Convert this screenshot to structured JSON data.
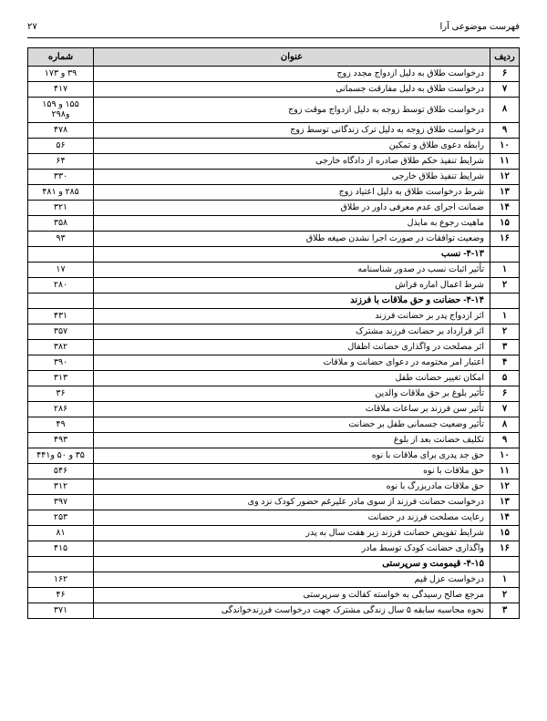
{
  "header": {
    "title": "فهرست موضوعی آرا",
    "page_no": "۲۷"
  },
  "table": {
    "columns": {
      "radif": "ردیف",
      "title": "عنوان",
      "page": "شماره"
    },
    "rows": [
      {
        "n": "۶",
        "t": "درخواست طلاق به دلیل ازدواج مجدد زوج",
        "p": "۳۹ و ۱۷۳"
      },
      {
        "n": "۷",
        "t": "درخواست طلاق به دلیل مفارقت جسمانی",
        "p": "۴۱۷"
      },
      {
        "n": "۸",
        "t": "درخواست طلاق توسط زوجه به دلیل ازدواج موقت زوج",
        "p": "۱۵۵ و ۱۵۹ و۲۹۸"
      },
      {
        "n": "۹",
        "t": "درخواست طلاق زوجه به دلیل ترک زندگانی توسط زوج",
        "p": "۴۷۸"
      },
      {
        "n": "۱۰",
        "t": "رابطه دعوی طلاق و تمکین",
        "p": "۵۶"
      },
      {
        "n": "۱۱",
        "t": "شرایط تنفیذ حکم طلاق صادره از دادگاه خارجی",
        "p": "۶۴"
      },
      {
        "n": "۱۲",
        "t": "شرایط تنفیذ طلاق خارجی",
        "p": "۳۳۰"
      },
      {
        "n": "۱۳",
        "t": "شرط درخواست طلاق به دلیل اعتیاد زوج",
        "p": "۲۸۵ و ۴۸۱"
      },
      {
        "n": "۱۴",
        "t": "ضمانت اجرای عدم معرفی داور در طلاق",
        "p": "۳۲۱"
      },
      {
        "n": "۱۵",
        "t": "ماهیت رجوع به مابذل",
        "p": "۳۵۸"
      },
      {
        "n": "۱۶",
        "t": "وضعیت توافقات در صورت اجرا نشدن صیغه طلاق",
        "p": "۹۳"
      },
      {
        "section": true,
        "t": "۴-۱۳- نسب"
      },
      {
        "n": "۱",
        "t": "تأثیر اثبات نسب در صدور شناسنامه",
        "p": "۱۷"
      },
      {
        "n": "۲",
        "t": "شرط اعمال اماره فراش",
        "p": "۲۸۰"
      },
      {
        "section": true,
        "t": "۴-۱۴- حضانت و حق ملاقات با فرزند"
      },
      {
        "n": "۱",
        "t": "اثر ازدواج پدر بر حضانت فرزند",
        "p": "۴۳۱"
      },
      {
        "n": "۲",
        "t": "اثر قرارداد بر حضانت فرزند مشترک",
        "p": "۳۵۷"
      },
      {
        "n": "۳",
        "t": "اثر مصلحت در واگذاری حضانت اطفال",
        "p": "۳۸۲"
      },
      {
        "n": "۴",
        "t": "اعتبار امر مختومه در دعوای حضانت و ملاقات",
        "p": "۳۹۰"
      },
      {
        "n": "۵",
        "t": "امکان تغییر حضانت طفل",
        "p": "۳۱۳"
      },
      {
        "n": "۶",
        "t": "تأثیر بلوغ بر حق ملاقات والدین",
        "p": "۳۶"
      },
      {
        "n": "۷",
        "t": "تأثیر سن فرزند بر ساعات ملاقات",
        "p": "۲۸۶"
      },
      {
        "n": "۸",
        "t": "تأثیر وضعیت جسمانی طفل بر حضانت",
        "p": "۴۹"
      },
      {
        "n": "۹",
        "t": "تکلیف حضانت بعد از بلوغ",
        "p": "۴۹۳"
      },
      {
        "n": "۱۰",
        "t": "حق جد پدری برای ملاقات با نوه",
        "p": "۳۵ و ۵۰ و۴۴۱"
      },
      {
        "n": "۱۱",
        "t": "حق ملاقات با نوه",
        "p": "۵۴۶"
      },
      {
        "n": "۱۲",
        "t": "حق ملاقات مادربزرگ با نوه",
        "p": "۳۱۲"
      },
      {
        "n": "۱۳",
        "t": "درخواست حضانت فرزند از سوی مادر علیرغم حضور کودک نزد وی",
        "p": "۳۹۷"
      },
      {
        "n": "۱۴",
        "t": "رعایت مصلحت فرزند در حضانت",
        "p": "۲۵۳"
      },
      {
        "n": "۱۵",
        "t": "شرایط تفویض حضانت فرزند زیر هفت سال به پدر",
        "p": "۸۱"
      },
      {
        "n": "۱۶",
        "t": "واگذاری حضانت کودک توسط مادر",
        "p": "۴۱۵"
      },
      {
        "section": true,
        "t": "۴-۱۵- قیمومت و سرپرستی"
      },
      {
        "n": "۱",
        "t": "درخواست عزل قیم",
        "p": "۱۶۲"
      },
      {
        "n": "۲",
        "t": "مرجع صالح رسیدگی به خواسته کفالت و سرپرستی",
        "p": "۴۶"
      },
      {
        "n": "۳",
        "t": "نحوه محاسبه سابقه ۵ سال زندگی مشترک جهت درخواست فرزندخواندگی",
        "p": "۳۷۱"
      }
    ]
  }
}
